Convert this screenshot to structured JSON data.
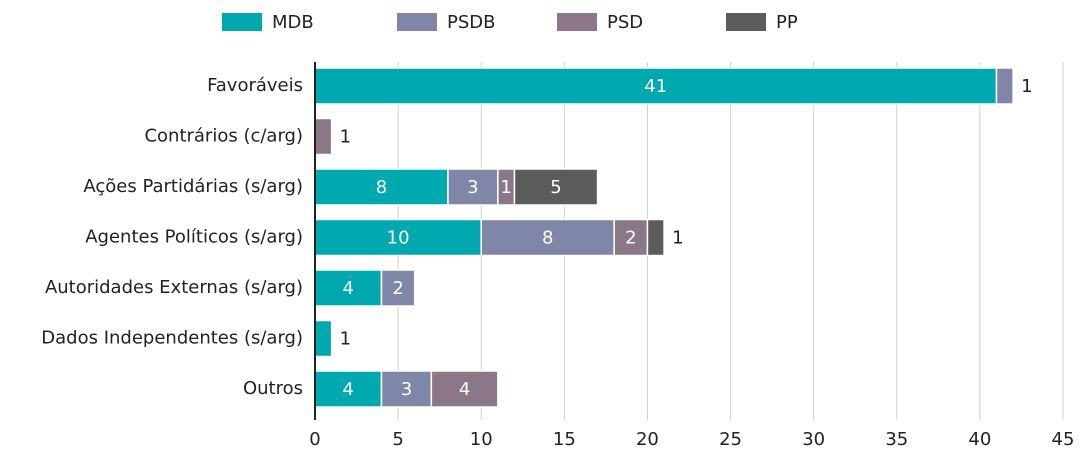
{
  "chart_data": {
    "type": "stacked_barh",
    "categories": [
      "Favoráveis",
      "Contrários (c/arg)",
      "Ações Partidárias (s/arg)",
      "Agentes Políticos (s/arg)",
      "Autoridades Externas (s/arg)",
      "Dados Independentes (s/arg)",
      "Outros"
    ],
    "series": [
      {
        "name": "MDB",
        "color": "#00a9b0",
        "values": [
          41,
          null,
          8,
          10,
          4,
          1,
          4
        ]
      },
      {
        "name": "PSDB",
        "color": "#7f86a8",
        "values": [
          1,
          null,
          3,
          8,
          2,
          null,
          3
        ]
      },
      {
        "name": "PSD",
        "color": "#8b7785",
        "values": [
          null,
          1,
          1,
          2,
          null,
          null,
          4
        ]
      },
      {
        "name": "PP",
        "color": "#5c5c5c",
        "values": [
          null,
          null,
          5,
          1,
          null,
          null,
          null
        ]
      }
    ],
    "xlim": [
      0,
      45
    ],
    "xticks": [
      0,
      5,
      10,
      15,
      20,
      25,
      30,
      35,
      40,
      45
    ],
    "grid": true,
    "legend": "top"
  }
}
